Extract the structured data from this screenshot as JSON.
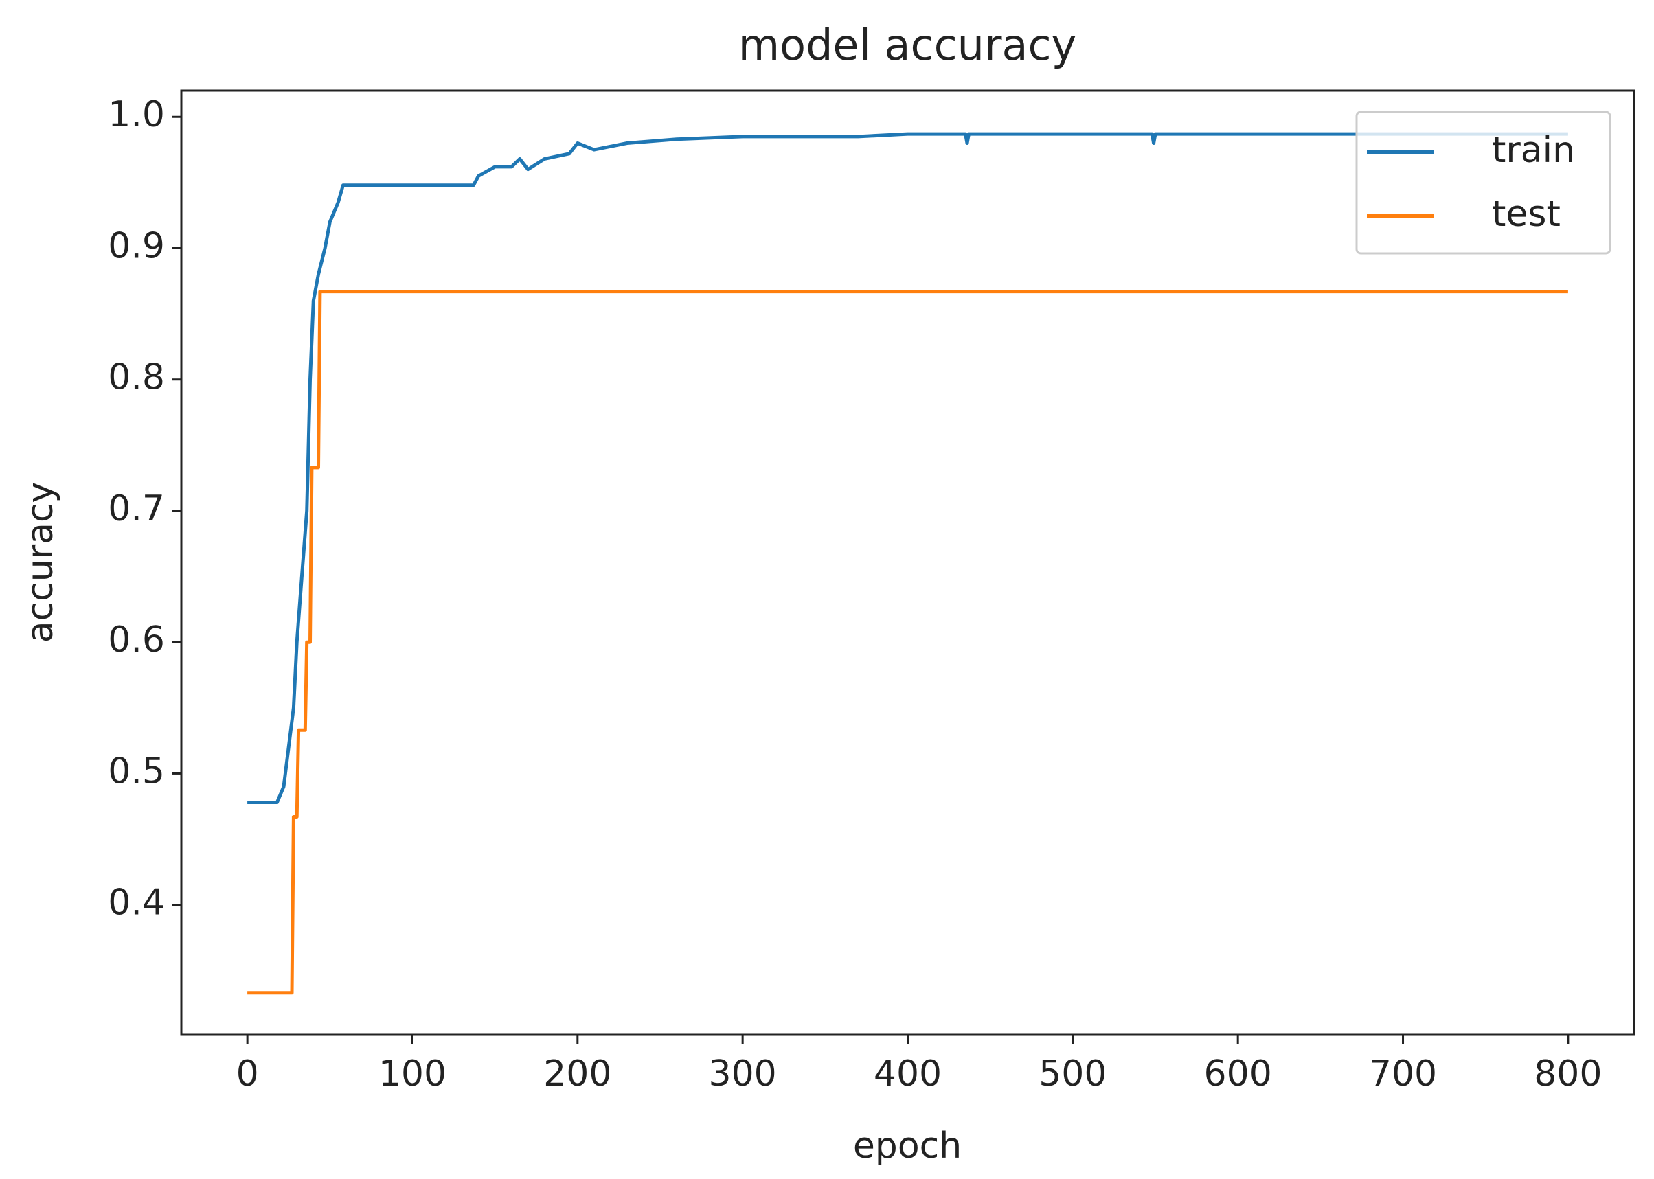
{
  "chart_data": {
    "type": "line",
    "title": "model accuracy",
    "x_label": "epoch",
    "y_label": "accuracy",
    "xlim": [
      -40,
      840
    ],
    "ylim": [
      0.301,
      1.02
    ],
    "xticks": [
      0,
      100,
      200,
      300,
      400,
      500,
      600,
      700,
      800
    ],
    "yticks": [
      0.4,
      0.5,
      0.6,
      0.7,
      0.8,
      0.9,
      {
        "value": 1,
        "label": "1.0"
      }
    ],
    "grid": false,
    "legend": "upper right",
    "series": [
      {
        "name": "train",
        "color": "#1f77b4",
        "x": [
          0,
          18,
          22,
          25,
          28,
          30,
          33,
          36,
          38,
          40,
          43,
          47,
          50,
          55,
          58,
          137,
          140,
          150,
          160,
          165,
          170,
          180,
          195,
          200,
          210,
          230,
          260,
          300,
          370,
          400,
          435,
          436,
          437,
          548,
          549,
          550,
          800
        ],
        "values": [
          0.478,
          0.478,
          0.49,
          0.52,
          0.55,
          0.6,
          0.65,
          0.7,
          0.8,
          0.86,
          0.88,
          0.9,
          0.92,
          0.935,
          0.948,
          0.948,
          0.955,
          0.962,
          0.962,
          0.968,
          0.96,
          0.968,
          0.972,
          0.98,
          0.975,
          0.98,
          0.983,
          0.985,
          0.985,
          0.987,
          0.987,
          0.98,
          0.987,
          0.987,
          0.98,
          0.987,
          0.987
        ]
      },
      {
        "name": "test",
        "color": "#ff7f0e",
        "x": [
          0,
          27,
          28,
          30,
          31,
          35,
          36,
          38,
          39,
          43,
          44,
          800
        ],
        "values": [
          0.333,
          0.333,
          0.467,
          0.467,
          0.533,
          0.533,
          0.6,
          0.6,
          0.733,
          0.733,
          0.867,
          0.867
        ]
      }
    ]
  }
}
